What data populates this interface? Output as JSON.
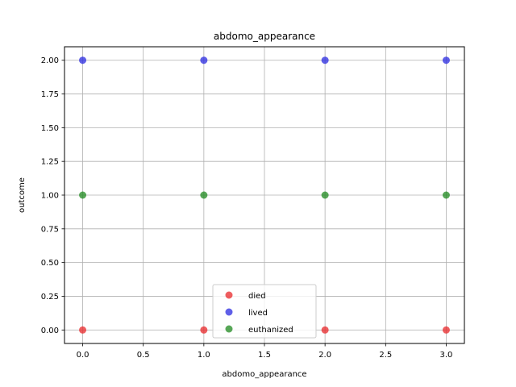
{
  "chart_data": {
    "type": "scatter",
    "title": "abdomo_appearance",
    "xlabel": "abdomo_appearance",
    "ylabel": "outcome",
    "xlim": [
      -0.15,
      3.15
    ],
    "ylim": [
      -0.1,
      2.1
    ],
    "x_ticks": [
      "0.0",
      "0.5",
      "1.0",
      "1.5",
      "2.0",
      "2.5",
      "3.0"
    ],
    "y_ticks": [
      "0.00",
      "0.25",
      "0.50",
      "0.75",
      "1.00",
      "1.25",
      "1.50",
      "1.75",
      "2.00"
    ],
    "grid": true,
    "legend_position": "lower center",
    "series": [
      {
        "name": "died",
        "color": "#e8272a",
        "points": [
          [
            0,
            0
          ],
          [
            1,
            0
          ],
          [
            2,
            0
          ],
          [
            3,
            0
          ]
        ]
      },
      {
        "name": "lived",
        "color": "#2a2ae0",
        "points": [
          [
            0,
            2
          ],
          [
            1,
            2
          ],
          [
            2,
            2
          ],
          [
            3,
            2
          ]
        ]
      },
      {
        "name": "euthanized",
        "color": "#1f8a1f",
        "points": [
          [
            0,
            1
          ],
          [
            1,
            1
          ],
          [
            2,
            1
          ],
          [
            3,
            1
          ]
        ]
      }
    ]
  }
}
